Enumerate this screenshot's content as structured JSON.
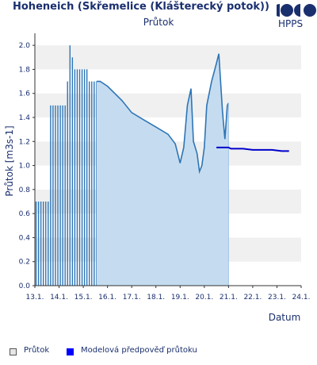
{
  "chart_data": {
    "type": "area",
    "title": "Hoheneich (Skřemelice (Klášterecký potok))",
    "subtitle": "Průtok",
    "ylabel": "Průtok [m3s-1]",
    "xlabel": "Datum",
    "ylim": [
      0,
      2.1
    ],
    "yticks": [
      "0.0",
      "0.2",
      "0.4",
      "0.6",
      "0.8",
      "1.0",
      "1.2",
      "1.4",
      "1.6",
      "1.8",
      "2.0"
    ],
    "xlim": [
      13.0,
      24.0
    ],
    "xticks": [
      "13.1.",
      "14.1.",
      "15.1.",
      "16.1.",
      "17.1.",
      "18.1.",
      "19.1.",
      "20.1.",
      "21.1.",
      "22.1.",
      "23.1.",
      "24.1."
    ],
    "grid": "horizontal bands",
    "legend_position": "bottom",
    "series": [
      {
        "name": "Průtok",
        "color": "#2e75b6",
        "fill": "#c5dcf0",
        "x": [
          13.0,
          13.5,
          13.55,
          14.0,
          14.3,
          14.35,
          14.5,
          14.6,
          14.8,
          15.0,
          15.2,
          15.4,
          15.5,
          15.7,
          16.0,
          16.3,
          16.6,
          17.0,
          17.5,
          18.0,
          18.5,
          18.8,
          19.0,
          19.15,
          19.3,
          19.45,
          19.55,
          19.7,
          19.8,
          19.9,
          20.0,
          20.1,
          20.3,
          20.5,
          20.6,
          20.75,
          20.85,
          20.95,
          21.0
        ],
        "y": [
          0.7,
          0.7,
          1.5,
          1.5,
          1.7,
          2.0,
          1.9,
          1.8,
          1.8,
          1.8,
          1.7,
          1.7,
          1.7,
          1.7,
          1.66,
          1.6,
          1.54,
          1.44,
          1.38,
          1.32,
          1.26,
          1.18,
          1.02,
          1.15,
          1.5,
          1.64,
          1.2,
          1.1,
          0.95,
          1.0,
          1.15,
          1.5,
          1.7,
          1.85,
          1.93,
          1.45,
          1.22,
          1.5,
          1.52
        ]
      },
      {
        "name": "Modelová předpověď průtoku",
        "color": "#0000cc",
        "x": [
          20.5,
          21.0,
          21.1,
          21.6,
          22.0,
          22.4,
          22.8,
          23.2,
          23.5
        ],
        "y": [
          1.15,
          1.15,
          1.14,
          1.14,
          1.13,
          1.13,
          1.13,
          1.12,
          1.12
        ]
      }
    ]
  },
  "logo": {
    "text": "HPPS"
  }
}
